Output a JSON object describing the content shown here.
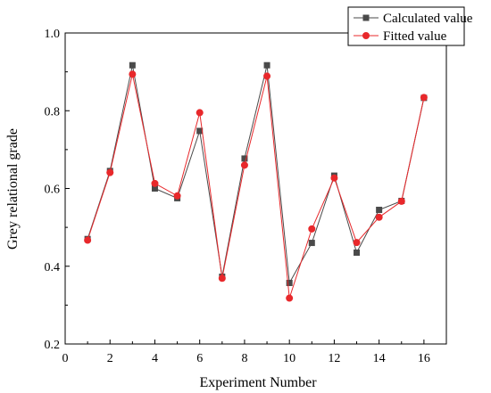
{
  "chart_data": {
    "type": "line",
    "xlabel": "Experiment Number",
    "ylabel": "Grey relational grade",
    "xlim": [
      0,
      17
    ],
    "ylim": [
      0.2,
      1.0
    ],
    "x_ticks": [
      0,
      2,
      4,
      6,
      8,
      10,
      12,
      14,
      16
    ],
    "y_ticks": [
      0.2,
      0.4,
      0.6,
      0.8,
      1.0
    ],
    "y_tick_labels": [
      "0.2",
      "0.4",
      "0.6",
      "0.8",
      "1.0"
    ],
    "grid": false,
    "legend_position": "top-right",
    "x": [
      1,
      2,
      3,
      4,
      5,
      6,
      7,
      8,
      9,
      10,
      11,
      12,
      13,
      14,
      15,
      16
    ],
    "series": [
      {
        "name": "Calculated value",
        "marker": "square",
        "color": "#4a4a4a",
        "values": [
          0.47,
          0.645,
          0.917,
          0.6,
          0.575,
          0.748,
          0.373,
          0.677,
          0.917,
          0.357,
          0.46,
          0.633,
          0.435,
          0.545,
          0.568,
          0.833
        ]
      },
      {
        "name": "Fitted value",
        "marker": "circle",
        "color": "#e8282b",
        "values": [
          0.467,
          0.641,
          0.894,
          0.613,
          0.581,
          0.795,
          0.369,
          0.66,
          0.889,
          0.318,
          0.496,
          0.627,
          0.461,
          0.526,
          0.567,
          0.834
        ]
      }
    ]
  }
}
